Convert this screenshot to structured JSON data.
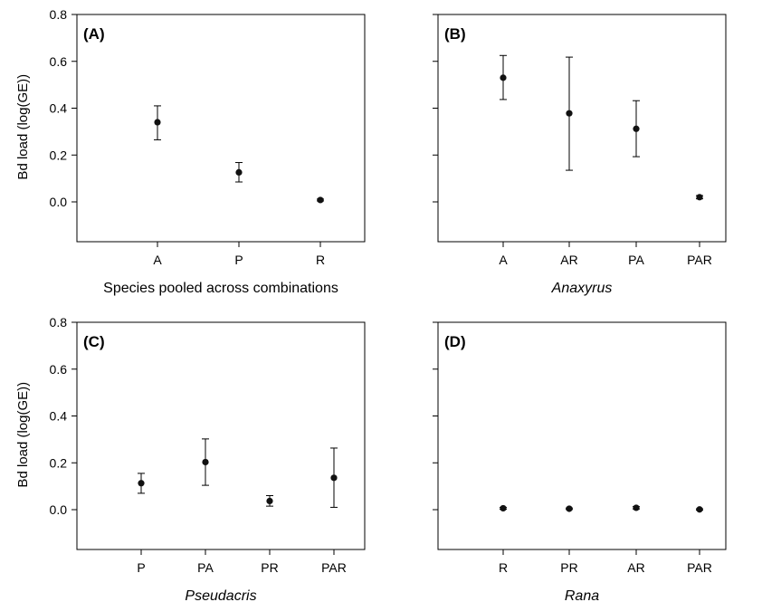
{
  "chart_data": [
    {
      "type": "scatter",
      "panel_label": "(A)",
      "xlabel": "Species pooled across combinations",
      "xlabel_italic": false,
      "ylabel": "Bd load (log(GE))",
      "ylim": [
        -0.17,
        0.8
      ],
      "yticks": [
        "0.0",
        "0.2",
        "0.4",
        "0.6",
        "0.8"
      ],
      "show_ytick_labels": true,
      "categories": [
        "A",
        "P",
        "R"
      ],
      "values": [
        0.34,
        0.126,
        0.008
      ],
      "err_low": [
        0.265,
        0.085,
        0.004
      ],
      "err_high": [
        0.41,
        0.168,
        0.012
      ]
    },
    {
      "type": "scatter",
      "panel_label": "(B)",
      "xlabel": "Anaxyrus",
      "xlabel_italic": true,
      "ylabel": "",
      "ylim": [
        -0.17,
        0.8
      ],
      "yticks": [
        "0.0",
        "0.2",
        "0.4",
        "0.6",
        "0.8"
      ],
      "show_ytick_labels": false,
      "categories": [
        "A",
        "AR",
        "PA",
        "PAR"
      ],
      "values": [
        0.53,
        0.378,
        0.312,
        0.02
      ],
      "err_low": [
        0.437,
        0.135,
        0.193,
        0.013
      ],
      "err_high": [
        0.625,
        0.618,
        0.432,
        0.027
      ]
    },
    {
      "type": "scatter",
      "panel_label": "(C)",
      "xlabel": "Pseudacris",
      "xlabel_italic": true,
      "ylabel": "Bd load (log(GE))",
      "ylim": [
        -0.17,
        0.8
      ],
      "yticks": [
        "0.0",
        "0.2",
        "0.4",
        "0.6",
        "0.8"
      ],
      "show_ytick_labels": true,
      "categories": [
        "P",
        "PA",
        "PR",
        "PAR"
      ],
      "values": [
        0.113,
        0.203,
        0.037,
        0.136
      ],
      "err_low": [
        0.07,
        0.104,
        0.015,
        0.01
      ],
      "err_high": [
        0.155,
        0.302,
        0.06,
        0.263
      ]
    },
    {
      "type": "scatter",
      "panel_label": "(D)",
      "xlabel": "Rana",
      "xlabel_italic": true,
      "ylabel": "",
      "ylim": [
        -0.17,
        0.8
      ],
      "yticks": [
        "0.0",
        "0.2",
        "0.4",
        "0.6",
        "0.8"
      ],
      "show_ytick_labels": false,
      "categories": [
        "R",
        "PR",
        "AR",
        "PAR"
      ],
      "values": [
        0.006,
        0.004,
        0.008,
        0.001
      ],
      "err_low": [
        0.002,
        0.001,
        0.003,
        -0.002
      ],
      "err_high": [
        0.01,
        0.007,
        0.013,
        0.004
      ]
    }
  ]
}
